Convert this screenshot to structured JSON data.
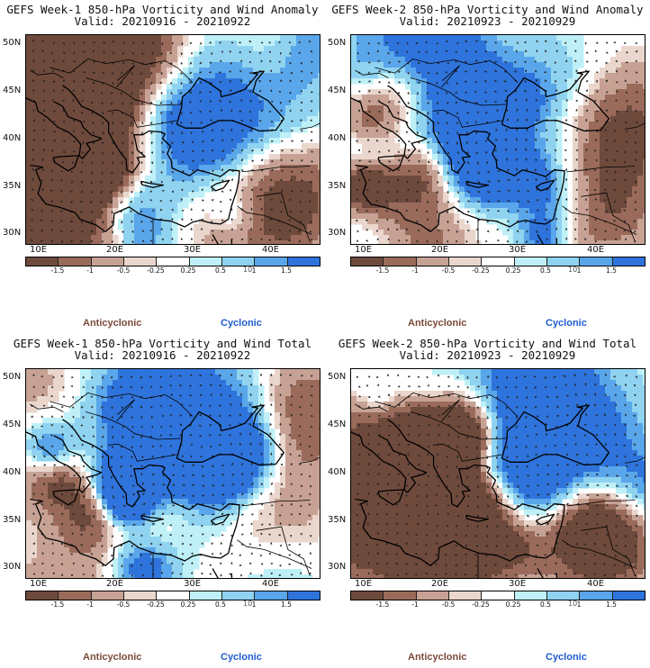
{
  "colors": {
    "levels": [
      "#6e4a3c",
      "#9a6b5b",
      "#c7a294",
      "#ead6cc",
      "#ffffff",
      "#bff0f7",
      "#8fd3f0",
      "#5aa6ea",
      "#2f74dc"
    ],
    "anticyclonic": "#7b4a3a",
    "cyclonic": "#1e5ccf",
    "coast": "#000000",
    "vectors": "#222222"
  },
  "colorbar": {
    "labels": [
      "-1.5",
      "-1",
      "-0.5",
      "-0.25",
      "0.25",
      "0.5",
      "1",
      "1.5"
    ],
    "unit": "10"
  },
  "axes": {
    "lat_labels": [
      "50N",
      "45N",
      "40N",
      "35N",
      "30N"
    ],
    "lon_labels": [
      "10E",
      "20E",
      "30E",
      "40E"
    ]
  },
  "legend": {
    "anticyclonic": "Anticyclonic",
    "cyclonic": "Cyclonic"
  },
  "panels": [
    {
      "title1": "GEFS Week-1 850-hPa Vorticity and Wind Anomaly",
      "title2": "Valid: 20210916 - 20210922",
      "seed": 11,
      "bias": 0.0
    },
    {
      "title1": "GEFS Week-2 850-hPa Vorticity and Wind Anomaly",
      "title2": "Valid: 20210923 - 20210929",
      "seed": 23,
      "bias": 0.15
    },
    {
      "title1": "GEFS Week-1 850-hPa Vorticity and Wind Total",
      "title2": "Valid: 20210916 - 20210922",
      "seed": 37,
      "bias": -0.1
    },
    {
      "title1": "GEFS Week-2 850-hPa Vorticity and Wind Total",
      "title2": "Valid: 20210923 - 20210929",
      "seed": 53,
      "bias": 0.1
    }
  ]
}
